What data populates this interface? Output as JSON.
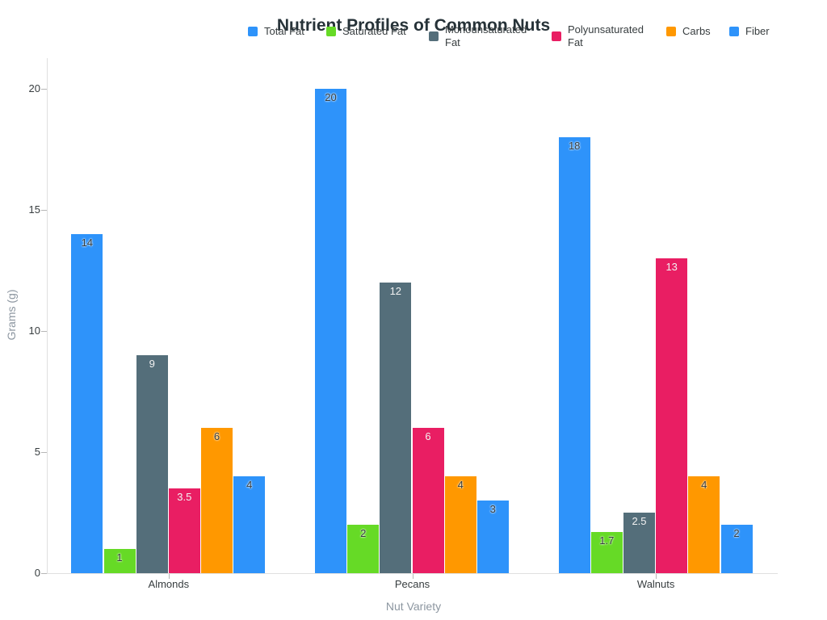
{
  "chart_data": {
    "type": "bar",
    "title": "Nutrient Profiles of Common Nuts",
    "xlabel": "Nut Variety",
    "ylabel": "Grams (g)",
    "categories": [
      "Almonds",
      "Pecans",
      "Walnuts"
    ],
    "series": [
      {
        "name": "Total Fat",
        "color": "#2E93FA",
        "label_contrast": "dark",
        "values": [
          14,
          20,
          18
        ]
      },
      {
        "name": "Saturated Fat",
        "color": "#66DA26",
        "label_contrast": "dark",
        "values": [
          1,
          2,
          1.7
        ]
      },
      {
        "name": "Monounsaturated Fat",
        "color": "#546E7A",
        "label_contrast": "light",
        "values": [
          9,
          12,
          2.5
        ]
      },
      {
        "name": "Polyunsaturated Fat",
        "color": "#E91E63",
        "label_contrast": "light",
        "values": [
          3.5,
          6,
          13
        ]
      },
      {
        "name": "Carbs",
        "color": "#FF9800",
        "label_contrast": "dark",
        "values": [
          6,
          4,
          4
        ]
      },
      {
        "name": "Fiber",
        "color": "#2E93FA",
        "label_contrast": "dark",
        "values": [
          4,
          3,
          2
        ]
      }
    ],
    "yticks": [
      0,
      5,
      10,
      15,
      20
    ],
    "ylim": [
      0,
      20
    ],
    "grid": false,
    "legend_position": "top",
    "data_labels": true
  }
}
